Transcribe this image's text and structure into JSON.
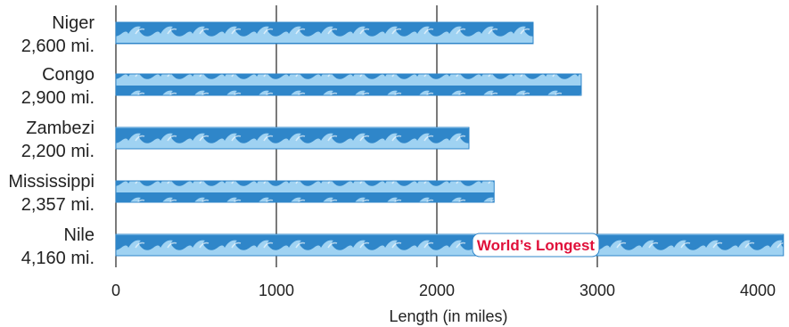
{
  "chart_data": {
    "type": "bar",
    "orientation": "horizontal",
    "categories": [
      "Niger",
      "Congo",
      "Zambezi",
      "Mississippi",
      "Nile"
    ],
    "values": [
      2600,
      2900,
      2200,
      2357,
      4160
    ],
    "value_labels": [
      "2,600 mi.",
      "2,900 mi.",
      "2,200 mi.",
      "2,357 mi.",
      "4,160 mi."
    ],
    "xlabel": "Length (in miles)",
    "ylabel": "",
    "xlim": [
      0,
      4000
    ],
    "x_ticks": [
      "0",
      "1000",
      "2000",
      "3000",
      "4000"
    ],
    "grid": "vertical",
    "annotation": {
      "category": "Nile",
      "text": "World’s Longest"
    },
    "colors": {
      "bar": "#2f86c9",
      "wave_light": "#9fd2f2",
      "wave_dark": "#2f86c9",
      "grid": "#222222",
      "annotation_text": "#e0103a",
      "annotation_bg": "#ffffff"
    }
  }
}
